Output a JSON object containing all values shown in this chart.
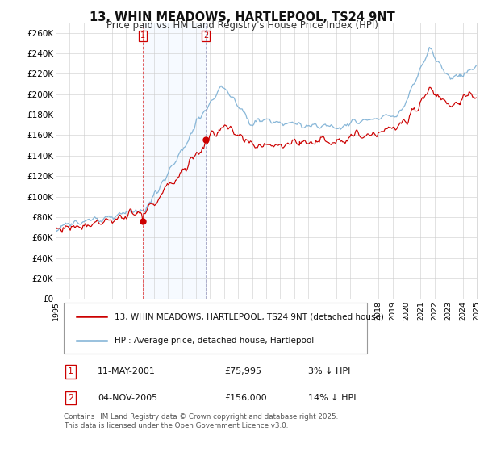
{
  "title": "13, WHIN MEADOWS, HARTLEPOOL, TS24 9NT",
  "subtitle": "Price paid vs. HM Land Registry's House Price Index (HPI)",
  "ylim": [
    0,
    270000
  ],
  "yticks": [
    0,
    20000,
    40000,
    60000,
    80000,
    100000,
    120000,
    140000,
    160000,
    180000,
    200000,
    220000,
    240000,
    260000
  ],
  "ytick_labels": [
    "£0",
    "£20K",
    "£40K",
    "£60K",
    "£80K",
    "£100K",
    "£120K",
    "£140K",
    "£160K",
    "£180K",
    "£200K",
    "£220K",
    "£240K",
    "£260K"
  ],
  "hpi_color": "#7bafd4",
  "price_color": "#cc0000",
  "shade_color": "#ddeeff",
  "m1_idx": 76,
  "m1_value": 75995,
  "m1_date": "11-MAY-2001",
  "m1_pct": "3% ↓ HPI",
  "m2_idx": 130,
  "m2_value": 156000,
  "m2_date": "04-NOV-2005",
  "m2_pct": "14% ↓ HPI",
  "legend_line1": "13, WHIN MEADOWS, HARTLEPOOL, TS24 9NT (detached house)",
  "legend_line2": "HPI: Average price, detached house, Hartlepool",
  "footer": "Contains HM Land Registry data © Crown copyright and database right 2025.\nThis data is licensed under the Open Government Licence v3.0.",
  "bg_color": "#ffffff",
  "grid_color": "#cccccc",
  "xtick_years": [
    1995,
    1996,
    1997,
    1998,
    1999,
    2000,
    2001,
    2002,
    2003,
    2004,
    2005,
    2006,
    2007,
    2008,
    2009,
    2010,
    2011,
    2012,
    2013,
    2014,
    2015,
    2016,
    2017,
    2018,
    2019,
    2020,
    2021,
    2022,
    2023,
    2024,
    2025
  ]
}
